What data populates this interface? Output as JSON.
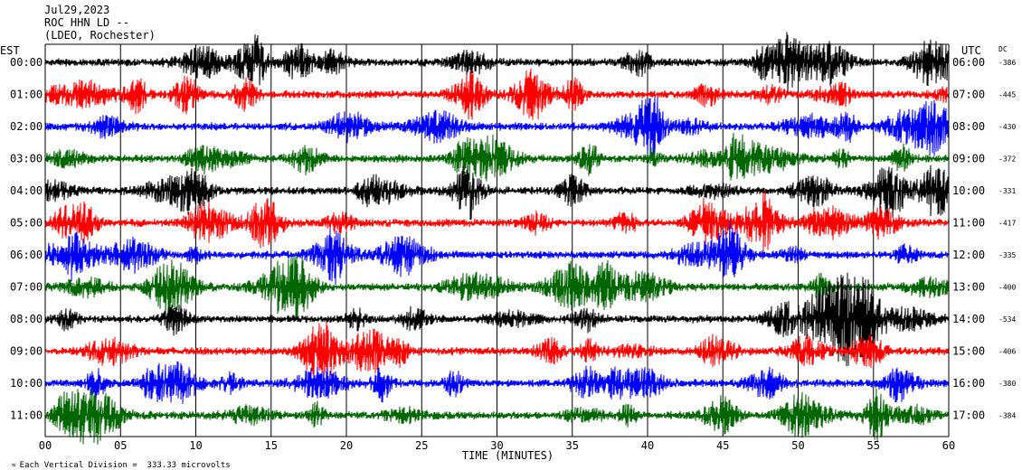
{
  "header": {
    "date": "Jul29,2023",
    "station": "ROC HHN LD --",
    "network": "(LDEO, Rochester)"
  },
  "chart_data": {
    "type": "line",
    "title": "Jul29,2023 ROC HHN LD -- (LDEO, Rochester)",
    "xlabel": "TIME (MINUTES)",
    "xlim": [
      0,
      60
    ],
    "x_ticks": [
      "00",
      "05",
      "10",
      "15",
      "20",
      "25",
      "30",
      "35",
      "40",
      "45",
      "50",
      "55",
      "60"
    ],
    "left_axis_label": "EST",
    "right_axis_label": "UTC",
    "dc_label": "DC",
    "grid": true,
    "colors": [
      "#000000",
      "#ff0000",
      "#0000ff",
      "#006600"
    ],
    "traces": [
      {
        "est": "00:00",
        "utc": "06:00",
        "dc": "-386",
        "color": "#000000"
      },
      {
        "est": "01:00",
        "utc": "07:00",
        "dc": "-445",
        "color": "#ff0000"
      },
      {
        "est": "02:00",
        "utc": "08:00",
        "dc": "-430",
        "color": "#0000ff"
      },
      {
        "est": "03:00",
        "utc": "09:00",
        "dc": "-372",
        "color": "#006600"
      },
      {
        "est": "04:00",
        "utc": "10:00",
        "dc": "-331",
        "color": "#000000"
      },
      {
        "est": "05:00",
        "utc": "11:00",
        "dc": "-417",
        "color": "#ff0000"
      },
      {
        "est": "06:00",
        "utc": "12:00",
        "dc": "-335",
        "color": "#0000ff"
      },
      {
        "est": "07:00",
        "utc": "13:00",
        "dc": "-400",
        "color": "#006600"
      },
      {
        "est": "08:00",
        "utc": "14:00",
        "dc": "-534",
        "color": "#000000"
      },
      {
        "est": "09:00",
        "utc": "15:00",
        "dc": "-406",
        "color": "#ff0000"
      },
      {
        "est": "10:00",
        "utc": "16:00",
        "dc": "-380",
        "color": "#0000ff"
      },
      {
        "est": "11:00",
        "utc": "17:00",
        "dc": "-384",
        "color": "#006600"
      }
    ]
  },
  "footer": {
    "symbol": "≈",
    "scale_text": "Each Vertical Division =  333.33 microvolts"
  }
}
